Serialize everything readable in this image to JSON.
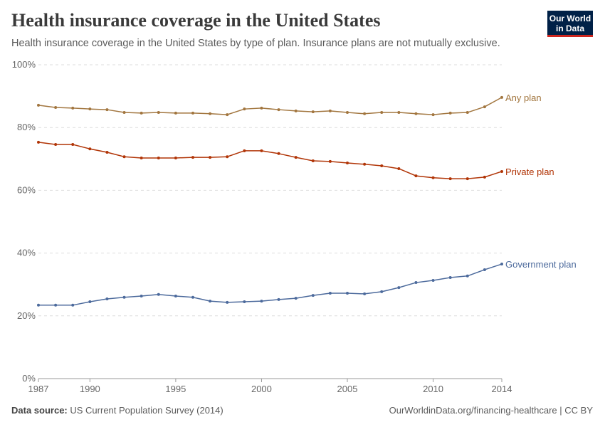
{
  "header": {
    "title": "Health insurance coverage in the United States",
    "subtitle": "Health insurance coverage in the United States by type of plan. Insurance plans are not mutually exclusive.",
    "logo": "Our World in Data"
  },
  "footer": {
    "source_label": "Data source:",
    "source_text": "US Current Population Survey (2014)",
    "url": "OurWorldinData.org/financing-healthcare | CC BY"
  },
  "chart_data": {
    "type": "line",
    "title": "Health insurance coverage in the United States",
    "x": [
      1987,
      1988,
      1989,
      1990,
      1991,
      1992,
      1993,
      1994,
      1995,
      1996,
      1997,
      1998,
      1999,
      2000,
      2001,
      2002,
      2003,
      2004,
      2005,
      2006,
      2007,
      2008,
      2009,
      2010,
      2011,
      2012,
      2013,
      2014
    ],
    "xticks": [
      1987,
      1990,
      1995,
      2000,
      2005,
      2010,
      2014
    ],
    "yticks": [
      0,
      20,
      40,
      60,
      80,
      100
    ],
    "ylim": [
      0,
      100
    ],
    "y_unit": "%",
    "grid": true,
    "series": [
      {
        "name": "Any plan",
        "color": "#a2763f",
        "values": [
          87.1,
          86.4,
          86.2,
          85.9,
          85.7,
          84.8,
          84.6,
          84.8,
          84.6,
          84.6,
          84.4,
          84.1,
          85.9,
          86.2,
          85.7,
          85.3,
          85.0,
          85.3,
          84.8,
          84.4,
          84.8,
          84.8,
          84.4,
          84.1,
          84.6,
          84.8,
          86.6,
          89.6
        ]
      },
      {
        "name": "Private plan",
        "color": "#b13507",
        "values": [
          75.3,
          74.6,
          74.6,
          73.2,
          72.1,
          70.7,
          70.3,
          70.3,
          70.3,
          70.5,
          70.5,
          70.7,
          72.6,
          72.6,
          71.7,
          70.5,
          69.4,
          69.2,
          68.7,
          68.3,
          67.8,
          66.9,
          64.6,
          64.0,
          63.7,
          63.7,
          64.2,
          66.0
        ]
      },
      {
        "name": "Government plan",
        "color": "#4c6a9c",
        "values": [
          23.4,
          23.4,
          23.4,
          24.5,
          25.4,
          25.9,
          26.3,
          26.8,
          26.3,
          25.9,
          24.7,
          24.3,
          24.5,
          24.7,
          25.2,
          25.6,
          26.5,
          27.2,
          27.2,
          27.0,
          27.7,
          29.0,
          30.6,
          31.3,
          32.2,
          32.7,
          34.7,
          36.5
        ]
      }
    ]
  }
}
